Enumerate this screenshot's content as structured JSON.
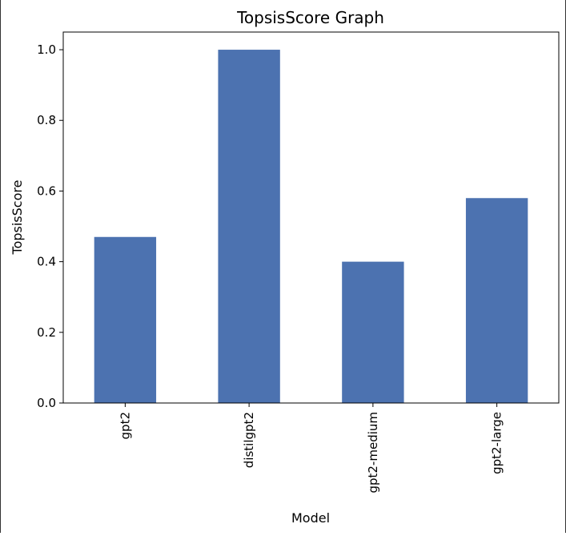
{
  "chart_data": {
    "type": "bar",
    "title": "TopsisScore Graph",
    "xlabel": "Model",
    "ylabel": "TopsisScore",
    "categories": [
      "gpt2",
      "distilgpt2",
      "gpt2-medium",
      "gpt2-large"
    ],
    "values": [
      0.47,
      1.0,
      0.4,
      0.58
    ],
    "ylim": [
      0,
      1.05
    ],
    "yticks": [
      0.0,
      0.2,
      0.4,
      0.6,
      0.8,
      1.0
    ],
    "ytick_labels": [
      "0.0",
      "0.2",
      "0.4",
      "0.6",
      "0.8",
      "1.0"
    ],
    "grid": false,
    "bar_color": "#4c72b0"
  }
}
